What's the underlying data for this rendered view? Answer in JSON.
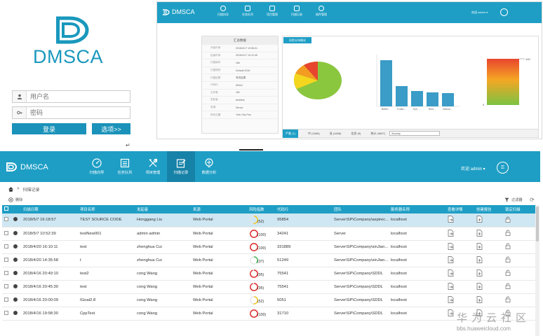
{
  "login": {
    "logo_text": "DMSCA",
    "username_placeholder": "用户名",
    "password_placeholder": "密码",
    "login_button": "登录",
    "options_button": "选项>>",
    "brand_color": "#1a98bd"
  },
  "mini": {
    "brand": "DMSCA",
    "nav": [
      "扫描向导",
      "任务队列",
      "项目管理",
      "扫描记录",
      "插件管理"
    ],
    "user": "欢迎 admin ▾",
    "summary_title": "汇总数据",
    "summary_rows": [
      {
        "k": "开始时间",
        "v": "2016/4/17 10:56:01"
      },
      {
        "k": "结束时间",
        "v": "2016/4/17 10:12:46"
      },
      {
        "k": "扫描耗时",
        "v": "16h"
      },
      {
        "k": "扫描规则",
        "v": "Default 2016"
      },
      {
        "k": "扫描结果",
        "v": "有效结果"
      },
      {
        "k": "代码行",
        "v": "50341"
      },
      {
        "k": "文件数",
        "v": "181"
      },
      {
        "k": "发起者",
        "v": "test/test"
      },
      {
        "k": "来源",
        "v": "Server"
      },
      {
        "k": "所在位置",
        "v": "York City Fisc"
      }
    ],
    "tab_label": "风险分布情况",
    "bar_categories": [
      "Buffer...",
      "Trustb...",
      "SQL ...",
      "Rem...",
      "Insecur..."
    ],
    "gauge_top": "100",
    "gauge_bottom": "0",
    "bottom_items": [
      "严重 (1)",
      "中 (1668)",
      "低 (1668)",
      "信息 (5)",
      "统计 (3667)"
    ],
    "bottom_select": "Severity"
  },
  "app": {
    "brand": "DMSCA",
    "nav": [
      {
        "label": "扫描向导",
        "icon": "gauge-icon"
      },
      {
        "label": "任务队列",
        "icon": "list-icon"
      },
      {
        "label": "项目管理",
        "icon": "tools-icon"
      },
      {
        "label": "扫描记录",
        "icon": "record-icon"
      },
      {
        "label": "数据分析",
        "icon": "brain-icon"
      }
    ],
    "active_nav": 3,
    "user": "欢迎 admin ▾",
    "breadcrumb": "扫描记录",
    "delete_label": "删除",
    "filter_label": "过滤器",
    "columns": [
      "扫描日期",
      "项目名称",
      "发起者",
      "来源",
      "风险指数",
      "代码行",
      "团队",
      "服务器名称",
      "查看详情",
      "创建报告",
      "锁定扫描"
    ],
    "rows": [
      {
        "date": "2018/5/7 16:18:57",
        "project": "TEST SOURCE CODE",
        "owner": "Honggang Liu",
        "source": "Web Portal",
        "risk": "52",
        "risk_color": "#f0c419",
        "risk_frac": 0.52,
        "lines": "95854",
        "team": "Server\\SP\\Company\\aspirec...",
        "server": "localhost"
      },
      {
        "date": "2018/5/7 10:52:39",
        "project": "testNew001",
        "owner": "admin admin",
        "source": "Web Portal",
        "risk": "100",
        "risk_color": "#e02020",
        "risk_frac": 1.0,
        "lines": "34241",
        "team": "Server",
        "server": "localhost"
      },
      {
        "date": "2018/4/20 16:10:11",
        "project": "test",
        "owner": "zhenghua Cui",
        "source": "Web Portal",
        "risk": "100",
        "risk_color": "#e02020",
        "risk_frac": 1.0,
        "lines": "331889",
        "team": "Server\\SP\\Company\\sinJian...",
        "server": "localhost"
      },
      {
        "date": "2018/4/20 14:35:58",
        "project": "t",
        "owner": "zhenghua Cui",
        "source": "Web Portal",
        "risk": "37",
        "risk_color": "#3cb34a",
        "risk_frac": 0.37,
        "lines": "51249",
        "team": "Server\\SP\\Company\\sinJian...",
        "server": "localhost"
      },
      {
        "date": "2018/4/16 20:49:10",
        "project": "test2",
        "owner": "cong Wang",
        "source": "Web Portal",
        "risk": "95",
        "risk_color": "#e02020",
        "risk_frac": 0.95,
        "lines": "75541",
        "team": "Server\\SP\\Company\\SDDL",
        "server": "localhost"
      },
      {
        "date": "2018/4/16 20:45:30",
        "project": "test",
        "owner": "cong Wang",
        "source": "Web Portal",
        "risk": "95",
        "risk_color": "#e02020",
        "risk_frac": 0.95,
        "lines": "75541",
        "team": "Server\\SP\\Company\\SDDL",
        "server": "localhost"
      },
      {
        "date": "2018/4/16 20:00:09",
        "project": "IGoat2.8",
        "owner": "cong Wang",
        "source": "Web Portal",
        "risk": "52",
        "risk_color": "#f0c419",
        "risk_frac": 0.52,
        "lines": "5051",
        "team": "Server\\SP\\Company\\SDDL",
        "server": "localhost"
      },
      {
        "date": "2018/4/16 19:58:30",
        "project": "CppTest",
        "owner": "cong Wang",
        "source": "Web Portal",
        "risk": "100",
        "risk_color": "#e02020",
        "risk_frac": 1.0,
        "lines": "31710",
        "team": "Server\\SP\\Company\\SDDL",
        "server": "localhost"
      }
    ]
  },
  "watermark": {
    "line1": "华为云社区",
    "line2": "bbs.huaweicloud.com"
  }
}
